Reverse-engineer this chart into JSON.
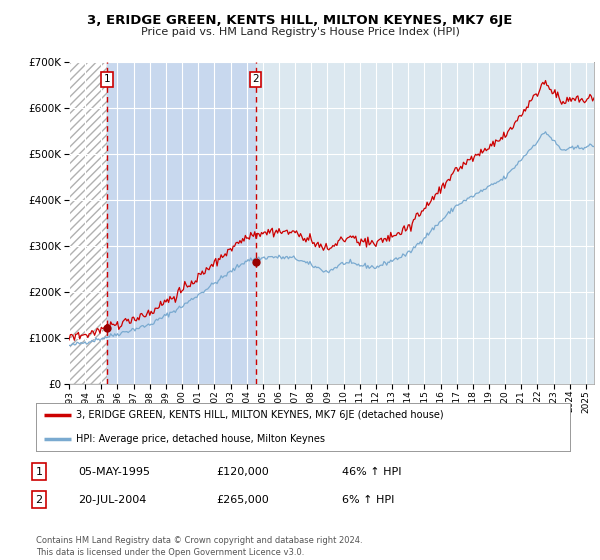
{
  "title": "3, ERIDGE GREEN, KENTS HILL, MILTON KEYNES, MK7 6JE",
  "subtitle": "Price paid vs. HM Land Registry's House Price Index (HPI)",
  "legend_line1": "3, ERIDGE GREEN, KENTS HILL, MILTON KEYNES, MK7 6JE (detached house)",
  "legend_line2": "HPI: Average price, detached house, Milton Keynes",
  "transaction1_date": "05-MAY-1995",
  "transaction1_price": "£120,000",
  "transaction1_hpi": "46% ↑ HPI",
  "transaction2_date": "20-JUL-2004",
  "transaction2_price": "£265,000",
  "transaction2_hpi": "6% ↑ HPI",
  "footnote": "Contains HM Land Registry data © Crown copyright and database right 2024.\nThis data is licensed under the Open Government Licence v3.0.",
  "plot_bg": "#dce8f0",
  "hatch_region_color": "#e8e8e8",
  "blue_span_color": "#c8d8ee",
  "grid_color": "#ffffff",
  "red_line_color": "#cc0000",
  "blue_line_color": "#7aaad0",
  "transaction1_x": 1995.37,
  "transaction2_x": 2004.55,
  "ylim_max": 700000,
  "xlim_min": 1993.0,
  "xlim_max": 2025.5,
  "yticks": [
    0,
    100000,
    200000,
    300000,
    400000,
    500000,
    600000,
    700000
  ],
  "ytick_labels": [
    "£0",
    "£100K",
    "£200K",
    "£300K",
    "£400K",
    "£500K",
    "£600K",
    "£700K"
  ]
}
